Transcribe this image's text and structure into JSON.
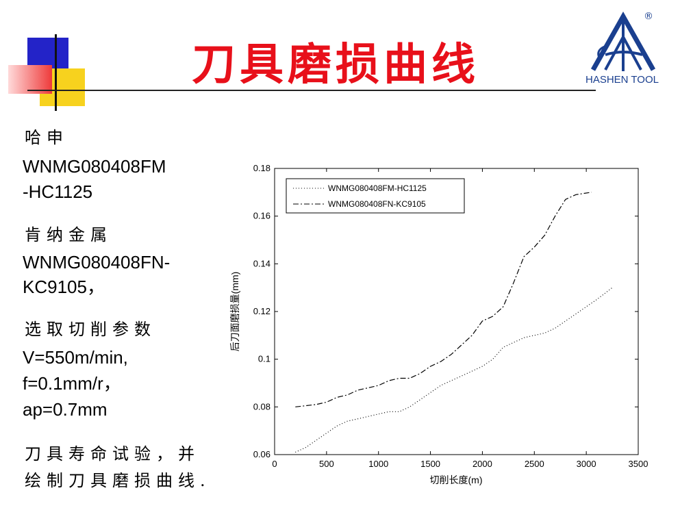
{
  "slide": {
    "title": "刀具磨损曲线",
    "logo_text": "HASHEN TOOL",
    "logo_mark": "®",
    "colors": {
      "title": "#e8101a",
      "logo": "#1a3f8f",
      "deco_blue": "#2323c8",
      "deco_yellow": "#f7d21e",
      "deco_red": "#ee3a3a"
    }
  },
  "left_text": {
    "line1": "哈申",
    "line2": "WNMG080408FM",
    "line3": "-HC1125",
    "line4": "肯纳金属",
    "line5": "WNMG080408FN-",
    "line6": "KC9105，",
    "line7": "选取切削参数",
    "line8": "V=550m/min,",
    "line9": "f=0.1mm/r，",
    "line10": "ap=0.7mm",
    "line11": "刀具寿命试验，并",
    "line12": "绘制刀具磨损曲线."
  },
  "chart_data": {
    "type": "line",
    "xlabel": "切削长度(m)",
    "ylabel": "后刀面磨损量(mm)",
    "xlim": [
      0,
      3500
    ],
    "ylim": [
      0.06,
      0.18
    ],
    "xticks": [
      "0",
      "500",
      "1000",
      "1500",
      "2000",
      "2500",
      "3000",
      "3500"
    ],
    "yticks": [
      "0.06",
      "0.08",
      "0.1",
      "0.12",
      "0.14",
      "0.16",
      "0.18"
    ],
    "grid": false,
    "legend_position": "top-left",
    "series": [
      {
        "name": "WNMG080408FM-HC1125",
        "style": "dotted",
        "x": [
          200,
          300,
          400,
          500,
          600,
          700,
          800,
          900,
          1000,
          1100,
          1200,
          1300,
          1400,
          1500,
          1600,
          1700,
          1800,
          1900,
          2000,
          2100,
          2200,
          2300,
          2400,
          2500,
          2600,
          2700,
          2800,
          2900,
          3000,
          3100,
          3250
        ],
        "y": [
          0.061,
          0.063,
          0.066,
          0.069,
          0.072,
          0.074,
          0.075,
          0.076,
          0.077,
          0.078,
          0.078,
          0.08,
          0.083,
          0.086,
          0.089,
          0.091,
          0.093,
          0.095,
          0.097,
          0.1,
          0.105,
          0.107,
          0.109,
          0.11,
          0.111,
          0.113,
          0.116,
          0.119,
          0.122,
          0.125,
          0.13
        ]
      },
      {
        "name": "WNMG080408FN-KC9105",
        "style": "dash-dot",
        "x": [
          200,
          300,
          400,
          500,
          600,
          700,
          800,
          900,
          1000,
          1100,
          1200,
          1300,
          1400,
          1500,
          1600,
          1700,
          1800,
          1900,
          2000,
          2100,
          2200,
          2300,
          2400,
          2500,
          2600,
          2700,
          2800,
          2900,
          3050
        ],
        "y": [
          0.08,
          0.0805,
          0.081,
          0.082,
          0.084,
          0.085,
          0.087,
          0.088,
          0.089,
          0.091,
          0.092,
          0.092,
          0.094,
          0.097,
          0.099,
          0.102,
          0.106,
          0.11,
          0.116,
          0.118,
          0.122,
          0.132,
          0.143,
          0.147,
          0.152,
          0.16,
          0.167,
          0.169,
          0.17
        ]
      }
    ]
  }
}
